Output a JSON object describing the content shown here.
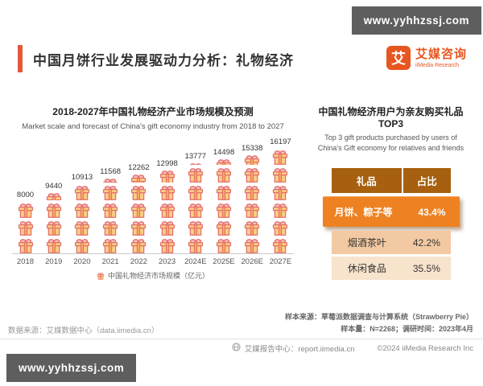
{
  "colors": {
    "accent-orange": "#E2593A",
    "brand-orange": "#E8561F",
    "badge-gray": "#5E5E5E",
    "table-header": "#A7600F",
    "highlight-row": "#EE8222",
    "row-peach-1": "#F2C9A2",
    "row-peach-2": "#F8E3CC",
    "gift-outline": "#E4706E",
    "gift-body": "#FACE83",
    "gift-ribbon": "#F4A661",
    "gift-bow": "#F8BDB9"
  },
  "watermark": {
    "top_right": "www.yyhhzssj.com",
    "bottom_left": "www.yyhhzssj.com"
  },
  "header": {
    "title": "中国月饼行业发展驱动力分析：礼物经济",
    "logo": {
      "mark": "艾",
      "name_zh": "艾媒咨询",
      "name_en": "iiMedia Research"
    }
  },
  "left_chart": {
    "title_zh": "2018-2027年中国礼物经济产业市场规模及预测",
    "title_en": "Market scale and forecast of China's gift economy industry from 2018 to 2027",
    "legend": "中国礼物经济市场规模（亿元）"
  },
  "right_panel": {
    "title_zh": "中国礼物经济用户为亲友购买礼品TOP3",
    "title_en": "Top 3 gift products purchased by users of China's Gift economy for relatives and friends",
    "table": {
      "headers": [
        "礼品",
        "占比"
      ],
      "rows": [
        {
          "gift": "月饼、粽子等",
          "share": "43.4%",
          "highlight": true
        },
        {
          "gift": "烟酒茶叶",
          "share": "42.2%",
          "highlight": false
        },
        {
          "gift": "休闲食品",
          "share": "35.5%",
          "highlight": false
        }
      ]
    }
  },
  "chart_data": [
    {
      "type": "bar",
      "style": "pictograph-gift-stack",
      "title": "2018-2027年中国礼物经济产业市场规模及预测",
      "subtitle": "Market scale and forecast of China's gift economy industry from 2018 to 2027",
      "categories": [
        "2018",
        "2019",
        "2020",
        "2021",
        "2022",
        "2023",
        "2024E",
        "2025E",
        "2026E",
        "2027E"
      ],
      "values": [
        8000,
        9440,
        10913,
        11568,
        12262,
        12998,
        13777,
        14498,
        15338,
        16197
      ],
      "ylabel": "中国礼物经济市场规模（亿元）",
      "legend_position": "bottom",
      "grid": false,
      "value_per_icon": 2700
    },
    {
      "type": "table",
      "title": "中国礼物经济用户为亲友购买礼品TOP3",
      "columns": [
        "礼品",
        "占比"
      ],
      "rows": [
        [
          "月饼、粽子等",
          "43.4%"
        ],
        [
          "烟酒茶叶",
          "42.2%"
        ],
        [
          "休闲食品",
          "35.5%"
        ]
      ],
      "highlight_row": 0
    }
  ],
  "footer": {
    "data_source": "数据来源：艾媒数据中心（data.iimedia.cn）",
    "sample_source": "样本来源：草莓派数据调查与计算系统（Strawberry Pie）",
    "sample_info": "样本量：N=2268；调研时间：2023年4月",
    "report_center": "艾媒报告中心：report.iimedia.cn",
    "copyright": "©2024  iiMedia Research Inc"
  }
}
